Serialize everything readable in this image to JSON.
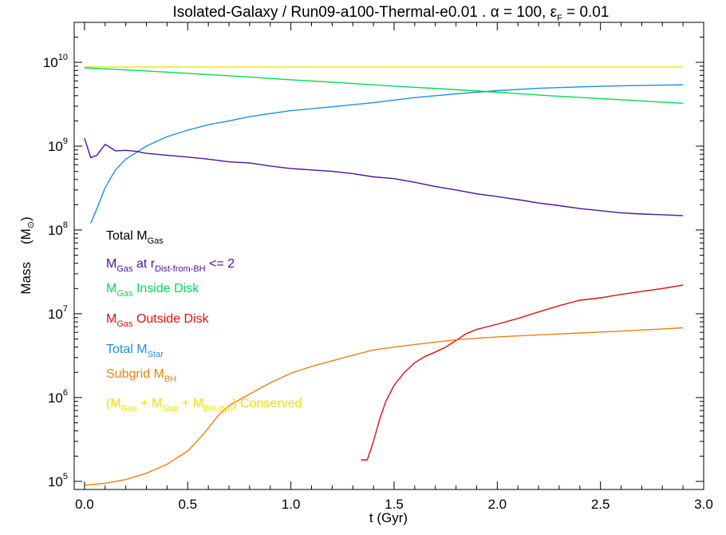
{
  "chart_data": {
    "type": "line",
    "title_parts": [
      "Isolated-Galaxy / Run09-a100-Thermal-e0.01 . ",
      "α",
      " = 100, ",
      "ε",
      "F",
      " = 0.01"
    ],
    "xlabel": "t   (Gyr)",
    "ylabel_parts": [
      "Mass",
      "(M",
      "⊙",
      ")"
    ],
    "xlim": [
      -0.05,
      3.0
    ],
    "ylim": [
      80000,
      30000000000
    ],
    "yscale": "log",
    "x_ticks": [
      0.0,
      0.5,
      1.0,
      1.5,
      2.0,
      2.5,
      3.0
    ],
    "x_tick_labels": [
      "0.0",
      "0.5",
      "1.0",
      "1.5",
      "2.0",
      "2.5",
      "3.0"
    ],
    "y_major_ticks": [
      100000,
      1000000,
      10000000,
      100000000,
      1000000000,
      10000000000
    ],
    "y_tick_base": "10",
    "y_tick_exponents": [
      "5",
      "6",
      "7",
      "8",
      "9",
      "10"
    ],
    "series": [
      {
        "key": "conserved",
        "color": "#f0e000",
        "x": [
          0.0,
          0.5,
          1.0,
          1.5,
          2.0,
          2.5,
          2.9
        ],
        "y": [
          8800000000,
          8800000000,
          8800000000,
          8800000000,
          8800000000,
          8800000000,
          8800000000
        ]
      },
      {
        "key": "gas-inside-disk",
        "color": "#00dd55",
        "x": [
          0.0,
          0.25,
          0.5,
          0.75,
          1.0,
          1.25,
          1.5,
          1.75,
          2.0,
          2.25,
          2.5,
          2.75,
          2.9
        ],
        "y": [
          8600000000,
          8000000000,
          7400000000,
          6800000000,
          6200000000,
          5700000000,
          5200000000,
          4800000000,
          4400000000,
          4000000000,
          3700000000,
          3400000000,
          3250000000
        ]
      },
      {
        "key": "total-star",
        "color": "#1a90e0",
        "x": [
          0.03,
          0.06,
          0.1,
          0.15,
          0.2,
          0.3,
          0.4,
          0.5,
          0.6,
          0.7,
          0.8,
          0.9,
          1.0,
          1.2,
          1.4,
          1.6,
          1.8,
          2.0,
          2.2,
          2.4,
          2.6,
          2.8,
          2.9
        ],
        "y": [
          120000000,
          180000000,
          320000000,
          520000000,
          700000000,
          1000000000,
          1300000000,
          1550000000,
          1800000000,
          2000000000,
          2250000000,
          2450000000,
          2650000000,
          2950000000,
          3300000000,
          3800000000,
          4200000000,
          4600000000,
          4900000000,
          5100000000,
          5250000000,
          5350000000,
          5400000000
        ]
      },
      {
        "key": "gas-near-bh",
        "color": "#5010a0",
        "x": [
          0.0,
          0.03,
          0.06,
          0.1,
          0.15,
          0.2,
          0.25,
          0.3,
          0.4,
          0.5,
          0.6,
          0.7,
          0.8,
          0.9,
          1.0,
          1.1,
          1.2,
          1.3,
          1.4,
          1.5,
          1.6,
          1.7,
          1.8,
          1.9,
          2.0,
          2.1,
          2.2,
          2.3,
          2.4,
          2.5,
          2.6,
          2.7,
          2.8,
          2.9
        ],
        "y": [
          1250000000,
          730000000,
          780000000,
          1050000000,
          880000000,
          890000000,
          870000000,
          820000000,
          780000000,
          740000000,
          700000000,
          650000000,
          630000000,
          580000000,
          540000000,
          520000000,
          500000000,
          470000000,
          430000000,
          410000000,
          370000000,
          330000000,
          300000000,
          270000000,
          250000000,
          230000000,
          210000000,
          195000000,
          180000000,
          170000000,
          160000000,
          155000000,
          152000000,
          148000000
        ]
      },
      {
        "key": "gas-outside-disk",
        "color": "#e01010",
        "x": [
          1.34,
          1.37,
          1.4,
          1.43,
          1.46,
          1.5,
          1.55,
          1.6,
          1.65,
          1.7,
          1.75,
          1.8,
          1.85,
          1.9,
          2.0,
          2.1,
          2.2,
          2.3,
          2.4,
          2.5,
          2.6,
          2.7,
          2.8,
          2.9
        ],
        "y": [
          180000,
          180000,
          300000,
          550000,
          900000,
          1400000,
          2000000,
          2600000,
          3100000,
          3500000,
          4000000,
          4800000,
          5800000,
          6500000,
          7500000,
          8800000,
          10500000,
          12500000,
          14500000,
          15500000,
          17000000,
          18500000,
          20000000,
          22000000
        ]
      },
      {
        "key": "subgrid-bh",
        "color": "#f08010",
        "x": [
          0.0,
          0.1,
          0.2,
          0.3,
          0.4,
          0.5,
          0.55,
          0.6,
          0.65,
          0.7,
          0.8,
          0.9,
          1.0,
          1.1,
          1.2,
          1.3,
          1.4,
          1.5,
          1.6,
          1.8,
          2.0,
          2.2,
          2.4,
          2.6,
          2.8,
          2.9
        ],
        "y": [
          90000,
          95000,
          105000,
          125000,
          160000,
          230000,
          310000,
          430000,
          620000,
          800000,
          1100000,
          1500000,
          1950000,
          2350000,
          2750000,
          3200000,
          3700000,
          4000000,
          4300000,
          4900000,
          5300000,
          5600000,
          5900000,
          6200000,
          6600000,
          6800000
        ]
      }
    ],
    "legend": [
      {
        "key": "total-gas",
        "color": "#000000",
        "parts": [
          "Total M",
          "Gas",
          ""
        ]
      },
      {
        "key": "gas-near-bh",
        "color": "#5010a0",
        "parts": [
          "M",
          "Gas",
          " at r",
          "Dist-from-BH",
          " <= 2"
        ]
      },
      {
        "key": "gas-inside-disk",
        "color": "#00dd55",
        "parts": [
          "M",
          "Gas",
          " Inside Disk"
        ]
      },
      {
        "key": "gas-outside-disk",
        "color": "#e01010",
        "parts": [
          "M",
          "Gas",
          " Outside Disk"
        ]
      },
      {
        "key": "total-star",
        "color": "#1a90e0",
        "parts": [
          "Total M",
          "Star",
          ""
        ]
      },
      {
        "key": "subgrid-bh",
        "color": "#f08010",
        "parts": [
          "Subgrid M",
          "BH",
          ""
        ]
      },
      {
        "key": "conserved",
        "color": "#f0e000",
        "parts": [
          "(M",
          "Gas",
          " + M",
          "Star",
          " + M",
          "BH,dyn",
          ") Conserved"
        ]
      }
    ]
  }
}
